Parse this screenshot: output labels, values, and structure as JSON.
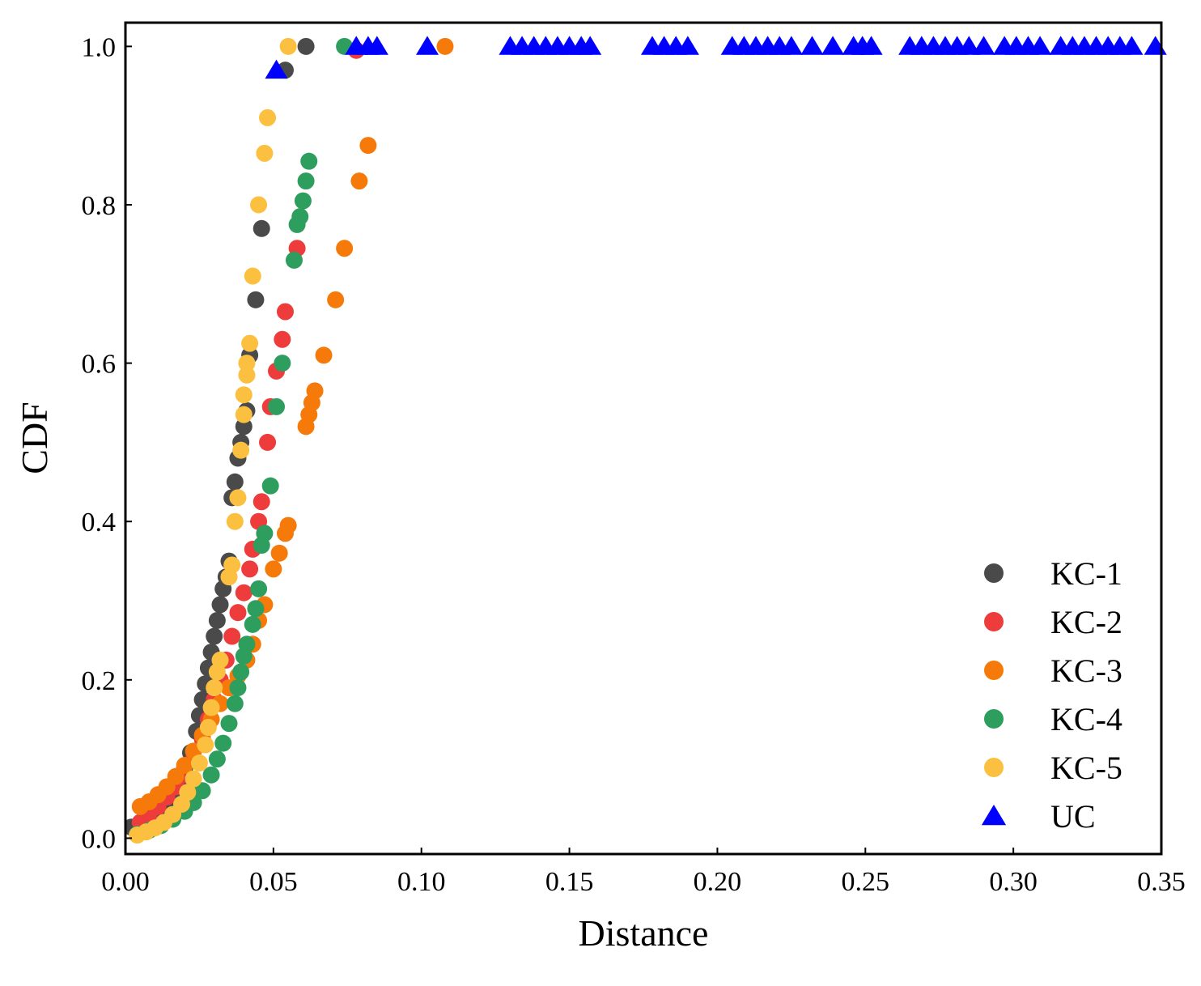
{
  "chart_data": {
    "type": "scatter",
    "title": "",
    "xlabel": "Distance",
    "ylabel": "CDF",
    "xlim": [
      0,
      0.35
    ],
    "ylim": [
      -0.02,
      1.03
    ],
    "xticks": [
      "0.00",
      "0.05",
      "0.10",
      "0.15",
      "0.20",
      "0.25",
      "0.30",
      "0.35"
    ],
    "xtick_values": [
      0,
      0.05,
      0.1,
      0.15,
      0.2,
      0.25,
      0.3,
      0.35
    ],
    "yticks": [
      "0.0",
      "0.2",
      "0.4",
      "0.6",
      "0.8",
      "1.0"
    ],
    "ytick_values": [
      0,
      0.2,
      0.4,
      0.6,
      0.8,
      1.0
    ],
    "grid": false,
    "legend_position": "bottom-right",
    "series": [
      {
        "name": "KC-1",
        "label": "KC-1",
        "color": "#4a4a4a",
        "marker": "circle",
        "points": [
          [
            0.002,
            0.014
          ],
          [
            0.005,
            0.016
          ],
          [
            0.008,
            0.022
          ],
          [
            0.011,
            0.03
          ],
          [
            0.014,
            0.042
          ],
          [
            0.016,
            0.055
          ],
          [
            0.018,
            0.07
          ],
          [
            0.02,
            0.088
          ],
          [
            0.022,
            0.108
          ],
          [
            0.024,
            0.135
          ],
          [
            0.025,
            0.155
          ],
          [
            0.026,
            0.175
          ],
          [
            0.027,
            0.195
          ],
          [
            0.028,
            0.215
          ],
          [
            0.029,
            0.235
          ],
          [
            0.03,
            0.255
          ],
          [
            0.031,
            0.275
          ],
          [
            0.032,
            0.295
          ],
          [
            0.033,
            0.315
          ],
          [
            0.034,
            0.33
          ],
          [
            0.035,
            0.35
          ],
          [
            0.036,
            0.43
          ],
          [
            0.037,
            0.45
          ],
          [
            0.038,
            0.48
          ],
          [
            0.039,
            0.5
          ],
          [
            0.04,
            0.52
          ],
          [
            0.041,
            0.54
          ],
          [
            0.042,
            0.61
          ],
          [
            0.044,
            0.68
          ],
          [
            0.046,
            0.77
          ],
          [
            0.054,
            0.97
          ],
          [
            0.061,
            1.0
          ]
        ]
      },
      {
        "name": "KC-2",
        "label": "KC-2",
        "color": "#ee3c3c",
        "marker": "circle",
        "points": [
          [
            0.005,
            0.02
          ],
          [
            0.008,
            0.03
          ],
          [
            0.011,
            0.04
          ],
          [
            0.014,
            0.052
          ],
          [
            0.017,
            0.065
          ],
          [
            0.02,
            0.08
          ],
          [
            0.023,
            0.1
          ],
          [
            0.026,
            0.125
          ],
          [
            0.028,
            0.15
          ],
          [
            0.03,
            0.175
          ],
          [
            0.032,
            0.2
          ],
          [
            0.034,
            0.225
          ],
          [
            0.036,
            0.255
          ],
          [
            0.038,
            0.285
          ],
          [
            0.04,
            0.31
          ],
          [
            0.042,
            0.34
          ],
          [
            0.043,
            0.365
          ],
          [
            0.045,
            0.4
          ],
          [
            0.046,
            0.425
          ],
          [
            0.048,
            0.5
          ],
          [
            0.049,
            0.545
          ],
          [
            0.051,
            0.59
          ],
          [
            0.053,
            0.63
          ],
          [
            0.054,
            0.665
          ],
          [
            0.058,
            0.745
          ],
          [
            0.078,
            0.995
          ]
        ]
      },
      {
        "name": "KC-3",
        "label": "KC-3",
        "color": "#f57a0a",
        "marker": "circle",
        "points": [
          [
            0.005,
            0.04
          ],
          [
            0.008,
            0.046
          ],
          [
            0.011,
            0.055
          ],
          [
            0.014,
            0.065
          ],
          [
            0.017,
            0.078
          ],
          [
            0.02,
            0.092
          ],
          [
            0.023,
            0.11
          ],
          [
            0.026,
            0.13
          ],
          [
            0.029,
            0.15
          ],
          [
            0.032,
            0.17
          ],
          [
            0.035,
            0.19
          ],
          [
            0.038,
            0.205
          ],
          [
            0.041,
            0.225
          ],
          [
            0.043,
            0.245
          ],
          [
            0.045,
            0.275
          ],
          [
            0.047,
            0.295
          ],
          [
            0.05,
            0.34
          ],
          [
            0.052,
            0.36
          ],
          [
            0.054,
            0.385
          ],
          [
            0.055,
            0.395
          ],
          [
            0.061,
            0.52
          ],
          [
            0.062,
            0.535
          ],
          [
            0.063,
            0.55
          ],
          [
            0.064,
            0.565
          ],
          [
            0.067,
            0.61
          ],
          [
            0.071,
            0.68
          ],
          [
            0.074,
            0.745
          ],
          [
            0.079,
            0.83
          ],
          [
            0.082,
            0.875
          ],
          [
            0.108,
            1.0
          ]
        ]
      },
      {
        "name": "KC-4",
        "label": "KC-4",
        "color": "#2e9e5e",
        "marker": "circle",
        "points": [
          [
            0.004,
            0.005
          ],
          [
            0.008,
            0.01
          ],
          [
            0.012,
            0.016
          ],
          [
            0.016,
            0.024
          ],
          [
            0.02,
            0.034
          ],
          [
            0.023,
            0.045
          ],
          [
            0.026,
            0.06
          ],
          [
            0.029,
            0.08
          ],
          [
            0.031,
            0.1
          ],
          [
            0.033,
            0.12
          ],
          [
            0.035,
            0.145
          ],
          [
            0.037,
            0.17
          ],
          [
            0.038,
            0.19
          ],
          [
            0.039,
            0.21
          ],
          [
            0.04,
            0.23
          ],
          [
            0.041,
            0.245
          ],
          [
            0.043,
            0.27
          ],
          [
            0.044,
            0.29
          ],
          [
            0.045,
            0.315
          ],
          [
            0.046,
            0.37
          ],
          [
            0.047,
            0.385
          ],
          [
            0.049,
            0.445
          ],
          [
            0.051,
            0.545
          ],
          [
            0.053,
            0.6
          ],
          [
            0.057,
            0.73
          ],
          [
            0.058,
            0.775
          ],
          [
            0.059,
            0.785
          ],
          [
            0.06,
            0.805
          ],
          [
            0.061,
            0.83
          ],
          [
            0.062,
            0.855
          ],
          [
            0.074,
            1.0
          ]
        ]
      },
      {
        "name": "KC-5",
        "label": "KC-5",
        "color": "#fcc040",
        "marker": "circle",
        "points": [
          [
            0.004,
            0.004
          ],
          [
            0.007,
            0.008
          ],
          [
            0.01,
            0.013
          ],
          [
            0.013,
            0.02
          ],
          [
            0.016,
            0.03
          ],
          [
            0.019,
            0.043
          ],
          [
            0.021,
            0.058
          ],
          [
            0.023,
            0.075
          ],
          [
            0.025,
            0.095
          ],
          [
            0.027,
            0.118
          ],
          [
            0.028,
            0.14
          ],
          [
            0.029,
            0.165
          ],
          [
            0.03,
            0.19
          ],
          [
            0.031,
            0.21
          ],
          [
            0.032,
            0.225
          ],
          [
            0.035,
            0.33
          ],
          [
            0.036,
            0.345
          ],
          [
            0.037,
            0.4
          ],
          [
            0.038,
            0.43
          ],
          [
            0.039,
            0.49
          ],
          [
            0.04,
            0.535
          ],
          [
            0.04,
            0.56
          ],
          [
            0.041,
            0.585
          ],
          [
            0.041,
            0.6
          ],
          [
            0.042,
            0.625
          ],
          [
            0.043,
            0.71
          ],
          [
            0.045,
            0.8
          ],
          [
            0.047,
            0.865
          ],
          [
            0.048,
            0.91
          ],
          [
            0.055,
            1.0
          ]
        ]
      },
      {
        "name": "UC",
        "label": "UC",
        "color": "#0000ff",
        "marker": "triangle",
        "points": [
          [
            0.051,
            0.97
          ],
          [
            0.078,
            1.0
          ],
          [
            0.082,
            1.0
          ],
          [
            0.085,
            1.0
          ],
          [
            0.102,
            1.0
          ],
          [
            0.13,
            1.0
          ],
          [
            0.134,
            1.0
          ],
          [
            0.138,
            1.0
          ],
          [
            0.142,
            1.0
          ],
          [
            0.146,
            1.0
          ],
          [
            0.15,
            1.0
          ],
          [
            0.154,
            1.0
          ],
          [
            0.157,
            1.0
          ],
          [
            0.178,
            1.0
          ],
          [
            0.182,
            1.0
          ],
          [
            0.186,
            1.0
          ],
          [
            0.19,
            1.0
          ],
          [
            0.205,
            1.0
          ],
          [
            0.209,
            1.0
          ],
          [
            0.213,
            1.0
          ],
          [
            0.217,
            1.0
          ],
          [
            0.221,
            1.0
          ],
          [
            0.225,
            1.0
          ],
          [
            0.232,
            1.0
          ],
          [
            0.239,
            1.0
          ],
          [
            0.246,
            1.0
          ],
          [
            0.249,
            1.0
          ],
          [
            0.252,
            1.0
          ],
          [
            0.265,
            1.0
          ],
          [
            0.269,
            1.0
          ],
          [
            0.273,
            1.0
          ],
          [
            0.277,
            1.0
          ],
          [
            0.281,
            1.0
          ],
          [
            0.285,
            1.0
          ],
          [
            0.29,
            1.0
          ],
          [
            0.297,
            1.0
          ],
          [
            0.301,
            1.0
          ],
          [
            0.305,
            1.0
          ],
          [
            0.309,
            1.0
          ],
          [
            0.316,
            1.0
          ],
          [
            0.32,
            1.0
          ],
          [
            0.324,
            1.0
          ],
          [
            0.328,
            1.0
          ],
          [
            0.332,
            1.0
          ],
          [
            0.336,
            1.0
          ],
          [
            0.34,
            1.0
          ],
          [
            0.348,
            1.0
          ]
        ]
      }
    ]
  }
}
